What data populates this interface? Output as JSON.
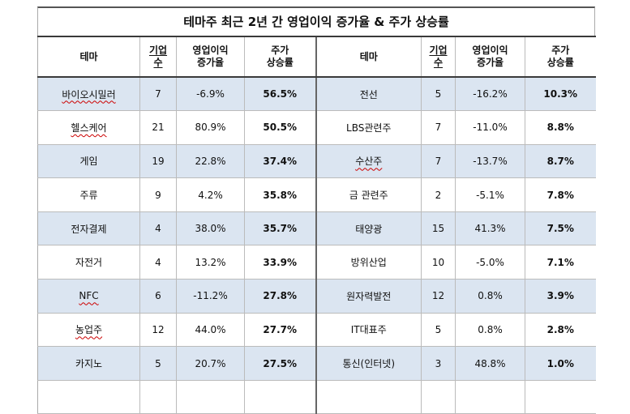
{
  "title": "테마주 최근 2년 간 영업이익 증가율 & 주가 상승률",
  "headers": {
    "theme": "테마",
    "count_top": "기업",
    "count_bottom": "수",
    "op_top": "영업이익",
    "op_bottom": "증가율",
    "price_top": "주가",
    "price_bottom": "상승률"
  },
  "rows": [
    {
      "left": {
        "theme": "바이오시밀러",
        "count": "7",
        "op": "-6.9%",
        "price": "56.5%"
      },
      "right": {
        "theme": "전선",
        "count": "5",
        "op": "-16.2%",
        "price": "10.3%"
      }
    },
    {
      "left": {
        "theme": "헬스케어",
        "count": "21",
        "op": "80.9%",
        "price": "50.5%"
      },
      "right": {
        "theme": "LBS관련주",
        "count": "7",
        "op": "-11.0%",
        "price": "8.8%"
      }
    },
    {
      "left": {
        "theme": "게임",
        "count": "19",
        "op": "22.8%",
        "price": "37.4%"
      },
      "right": {
        "theme": "수산주",
        "count": "7",
        "op": "-13.7%",
        "price": "8.7%"
      }
    },
    {
      "left": {
        "theme": "주류",
        "count": "9",
        "op": "4.2%",
        "price": "35.8%"
      },
      "right": {
        "theme": "금 관련주",
        "count": "2",
        "op": "-5.1%",
        "price": "7.8%"
      }
    },
    {
      "left": {
        "theme": "전자결제",
        "count": "4",
        "op": "38.0%",
        "price": "35.7%"
      },
      "right": {
        "theme": "태양광",
        "count": "15",
        "op": "41.3%",
        "price": "7.5%"
      }
    },
    {
      "left": {
        "theme": "자전거",
        "count": "4",
        "op": "13.2%",
        "price": "33.9%"
      },
      "right": {
        "theme": "방위산업",
        "count": "10",
        "op": "-5.0%",
        "price": "7.1%"
      }
    },
    {
      "left": {
        "theme": "NFC",
        "count": "6",
        "op": "-11.2%",
        "price": "27.8%"
      },
      "right": {
        "theme": "원자력발전",
        "count": "12",
        "op": "0.8%",
        "price": "3.9%"
      }
    },
    {
      "left": {
        "theme": "농업주",
        "count": "12",
        "op": "44.0%",
        "price": "27.7%"
      },
      "right": {
        "theme": "IT대표주",
        "count": "5",
        "op": "0.8%",
        "price": "2.8%"
      }
    },
    {
      "left": {
        "theme": "카지노",
        "count": "5",
        "op": "20.7%",
        "price": "27.5%"
      },
      "right": {
        "theme": "통신(인터넷)",
        "count": "3",
        "op": "48.8%",
        "price": "1.0%"
      }
    }
  ]
}
